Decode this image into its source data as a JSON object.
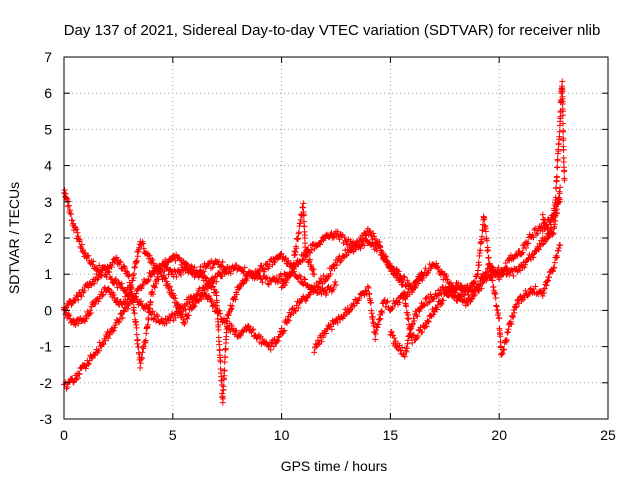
{
  "chart_data": {
    "type": "scatter",
    "title": "Day 137 of 2021, Sidereal Day-to-day VTEC variation (SDTVAR) for receiver nlib",
    "xlabel": "GPS time / hours",
    "ylabel": "SDTVAR / TECUs",
    "xlim": [
      0,
      25
    ],
    "ylim": [
      -3,
      7
    ],
    "xticks": [
      0,
      5,
      10,
      15,
      20,
      25
    ],
    "yticks": [
      -3,
      -2,
      -1,
      0,
      1,
      2,
      3,
      4,
      5,
      6,
      7
    ],
    "x_tick_labels": [
      "0",
      "5",
      "10",
      "15",
      "20",
      "25"
    ],
    "y_tick_labels": [
      "-3",
      "-2",
      "-1",
      "0",
      "1",
      "2",
      "3",
      "4",
      "5",
      "6",
      "7"
    ],
    "grid": true,
    "marker": "+",
    "color": "#ff0000",
    "series": [
      {
        "name": "track-1",
        "points": [
          [
            0,
            -2.1
          ],
          [
            0.5,
            -1.9
          ],
          [
            1.0,
            -1.5
          ],
          [
            1.5,
            -1.1
          ],
          [
            2.0,
            -0.7
          ],
          [
            2.5,
            -0.3
          ],
          [
            3.0,
            0.2
          ],
          [
            3.5,
            0.6
          ],
          [
            4.0,
            1.0
          ],
          [
            4.5,
            1.2
          ],
          [
            5.0,
            1.0
          ],
          [
            5.5,
            1.1
          ],
          [
            6.0,
            1.0
          ],
          [
            6.5,
            1.2
          ],
          [
            7.0,
            1.3
          ],
          [
            7.5,
            1.2
          ]
        ]
      },
      {
        "name": "track-2",
        "points": [
          [
            0,
            3.3
          ],
          [
            0.2,
            2.9
          ],
          [
            0.4,
            2.4
          ],
          [
            0.7,
            1.9
          ],
          [
            1.0,
            1.5
          ],
          [
            1.5,
            1.2
          ],
          [
            2.0,
            1.0
          ],
          [
            2.5,
            0.7
          ],
          [
            3.0,
            0.5
          ],
          [
            3.5,
            0.2
          ],
          [
            4.0,
            -0.1
          ],
          [
            4.5,
            -0.3
          ],
          [
            5.0,
            -0.2
          ],
          [
            5.5,
            0.1
          ],
          [
            6.0,
            0.4
          ],
          [
            6.5,
            0.6
          ],
          [
            7.0,
            0.9
          ],
          [
            7.5,
            1.1
          ],
          [
            8.0,
            1.2
          ],
          [
            8.5,
            1.0
          ],
          [
            9.0,
            0.9
          ],
          [
            9.5,
            0.8
          ],
          [
            10.0,
            0.9
          ],
          [
            10.5,
            1.0
          ],
          [
            11.0,
            0.8
          ],
          [
            11.5,
            0.6
          ],
          [
            12.0,
            0.5
          ],
          [
            12.5,
            0.7
          ]
        ]
      },
      {
        "name": "track-3",
        "points": [
          [
            0,
            0.1
          ],
          [
            0.5,
            0.3
          ],
          [
            1.0,
            0.6
          ],
          [
            1.5,
            0.9
          ],
          [
            2.0,
            1.2
          ],
          [
            2.5,
            1.4
          ],
          [
            3.0,
            0.9
          ],
          [
            3.3,
            -0.4
          ],
          [
            3.5,
            -1.5
          ],
          [
            3.8,
            -0.6
          ],
          [
            4.0,
            0.4
          ],
          [
            4.5,
            1.2
          ],
          [
            5.0,
            1.5
          ],
          [
            5.5,
            1.3
          ],
          [
            6.0,
            1.1
          ],
          [
            6.5,
            0.9
          ],
          [
            7.0,
            0.5
          ],
          [
            7.2,
            -1.6
          ],
          [
            7.3,
            -2.5
          ],
          [
            7.5,
            -0.2
          ],
          [
            8.0,
            0.6
          ],
          [
            8.5,
            1.0
          ],
          [
            9.0,
            1.1
          ],
          [
            9.5,
            1.3
          ],
          [
            10.0,
            1.5
          ],
          [
            10.5,
            1.2
          ],
          [
            11.0,
            2.9
          ],
          [
            11.1,
            1.6
          ],
          [
            11.5,
            1.0
          ]
        ]
      },
      {
        "name": "track-4",
        "points": [
          [
            0,
            0.0
          ],
          [
            0.5,
            -0.4
          ],
          [
            1.0,
            -0.2
          ],
          [
            1.5,
            0.3
          ],
          [
            2.0,
            0.6
          ],
          [
            2.5,
            0.2
          ],
          [
            3.0,
            0.4
          ],
          [
            3.5,
            1.9
          ],
          [
            4.0,
            1.4
          ],
          [
            4.5,
            1.0
          ],
          [
            5.0,
            0.4
          ],
          [
            5.5,
            -0.3
          ],
          [
            6.0,
            0.2
          ],
          [
            6.5,
            0.5
          ],
          [
            7.0,
            0.0
          ],
          [
            7.5,
            -0.4
          ],
          [
            8.0,
            -0.7
          ],
          [
            8.5,
            -0.5
          ],
          [
            9.0,
            -0.8
          ],
          [
            9.5,
            -1.0
          ],
          [
            10.0,
            -0.6
          ],
          [
            10.5,
            0.0
          ],
          [
            11.0,
            0.3
          ],
          [
            11.5,
            0.6
          ],
          [
            12.0,
            0.9
          ],
          [
            12.5,
            1.3
          ],
          [
            13.0,
            1.6
          ],
          [
            13.5,
            1.8
          ],
          [
            14.0,
            1.9
          ],
          [
            14.5,
            1.7
          ],
          [
            15.0,
            1.2
          ],
          [
            15.5,
            0.9
          ],
          [
            16.0,
            0.6
          ],
          [
            16.5,
            0.9
          ]
        ]
      },
      {
        "name": "track-5",
        "points": [
          [
            10.0,
            0.6
          ],
          [
            10.5,
            1.2
          ],
          [
            11.0,
            1.5
          ],
          [
            11.5,
            1.8
          ],
          [
            12.0,
            2.0
          ],
          [
            12.5,
            2.1
          ],
          [
            13.0,
            1.9
          ],
          [
            13.5,
            1.8
          ],
          [
            14.0,
            2.2
          ],
          [
            14.5,
            1.8
          ],
          [
            15.0,
            1.2
          ],
          [
            15.5,
            0.8
          ],
          [
            16.0,
            -0.8
          ],
          [
            16.5,
            -0.5
          ],
          [
            17.0,
            0.0
          ],
          [
            17.5,
            0.4
          ],
          [
            18.0,
            0.7
          ],
          [
            18.5,
            0.5
          ],
          [
            19.0,
            0.6
          ],
          [
            19.5,
            1.2
          ],
          [
            20.0,
            0.9
          ],
          [
            20.5,
            1.4
          ],
          [
            21.0,
            1.6
          ],
          [
            21.5,
            2.1
          ],
          [
            22.0,
            2.3
          ],
          [
            22.5,
            2.6
          ],
          [
            22.8,
            3.0
          ]
        ]
      },
      {
        "name": "track-6",
        "points": [
          [
            11.5,
            -1.1
          ],
          [
            12.0,
            -0.6
          ],
          [
            12.5,
            -0.3
          ],
          [
            13.0,
            0.0
          ],
          [
            13.5,
            0.3
          ],
          [
            14.0,
            0.6
          ],
          [
            14.3,
            -0.7
          ],
          [
            14.7,
            0.2
          ],
          [
            15.0,
            0.1
          ],
          [
            15.5,
            0.3
          ],
          [
            16.0,
            0.6
          ],
          [
            16.5,
            1.0
          ],
          [
            17.0,
            1.3
          ],
          [
            17.5,
            0.9
          ],
          [
            18.0,
            0.5
          ],
          [
            18.5,
            0.2
          ],
          [
            19.0,
            0.6
          ],
          [
            19.5,
            0.9
          ],
          [
            20.0,
            1.1
          ],
          [
            20.5,
            1.0
          ],
          [
            21.0,
            1.2
          ],
          [
            21.5,
            1.5
          ],
          [
            22.0,
            1.9
          ],
          [
            22.5,
            2.2
          ],
          [
            22.8,
            3.4
          ]
        ]
      },
      {
        "name": "track-7",
        "points": [
          [
            15.0,
            -0.6
          ],
          [
            15.3,
            -1.0
          ],
          [
            15.7,
            -1.2
          ],
          [
            16.0,
            -0.3
          ],
          [
            16.5,
            0.2
          ],
          [
            17.0,
            0.4
          ],
          [
            17.5,
            0.6
          ],
          [
            18.0,
            0.3
          ],
          [
            18.5,
            0.6
          ],
          [
            19.0,
            0.9
          ],
          [
            19.3,
            2.6
          ],
          [
            19.5,
            1.5
          ],
          [
            20.0,
            -0.3
          ],
          [
            20.1,
            -1.3
          ],
          [
            20.4,
            -0.6
          ],
          [
            20.8,
            0.2
          ],
          [
            21.5,
            0.6
          ],
          [
            22.0,
            0.5
          ],
          [
            22.5,
            1.2
          ],
          [
            22.8,
            1.8
          ]
        ]
      },
      {
        "name": "track-8",
        "points": [
          [
            22.0,
            2.6
          ],
          [
            22.3,
            2.1
          ],
          [
            22.5,
            2.7
          ],
          [
            22.6,
            3.2
          ],
          [
            22.7,
            4.3
          ],
          [
            22.8,
            5.2
          ],
          [
            22.85,
            6.0
          ],
          [
            22.9,
            6.3
          ],
          [
            22.95,
            4.5
          ],
          [
            23.0,
            3.6
          ]
        ]
      }
    ]
  }
}
